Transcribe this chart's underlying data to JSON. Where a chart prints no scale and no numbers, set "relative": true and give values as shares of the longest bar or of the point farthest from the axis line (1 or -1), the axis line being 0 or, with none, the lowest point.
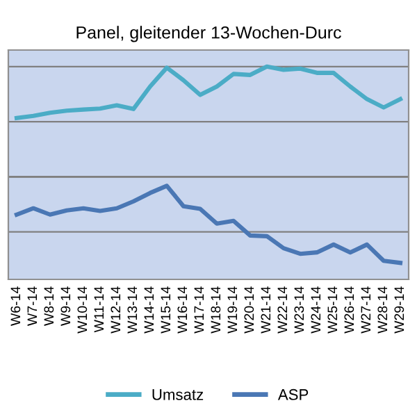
{
  "chart_data": {
    "type": "line",
    "title": "Panel, gleitender 13-Wochen-Durc",
    "relative": true,
    "grid": "y",
    "legend": "bottom",
    "line_style": "solid",
    "categories": [
      "W6-14",
      "W7-14",
      "W8-14",
      "W9-14",
      "W10-14",
      "W11-14",
      "W12-14",
      "W13-14",
      "W14-14",
      "W15-14",
      "W16-14",
      "W17-14",
      "W18-14",
      "W19-14",
      "W20-14",
      "W21-14",
      "W22-14",
      "W23-14",
      "W24-14",
      "W25-14",
      "W26-14",
      "W27-14",
      "W28-14",
      "W29-14"
    ],
    "series": [
      {
        "name": "Umsatz",
        "color": "#4bacc6",
        "values": [
          0.533,
          0.552,
          0.581,
          0.6,
          0.61,
          0.619,
          0.648,
          0.615,
          0.819,
          0.99,
          0.876,
          0.743,
          0.819,
          0.933,
          0.924,
          1.0,
          0.971,
          0.981,
          0.943,
          0.943,
          0.819,
          0.705,
          0.629,
          0.705
        ]
      },
      {
        "name": "ASP",
        "color": "#4a77b4",
        "values": [
          -0.343,
          -0.286,
          -0.343,
          -0.305,
          -0.286,
          -0.31,
          -0.286,
          -0.223,
          -0.147,
          -0.082,
          -0.267,
          -0.291,
          -0.425,
          -0.4,
          -0.533,
          -0.539,
          -0.648,
          -0.699,
          -0.686,
          -0.615,
          -0.686,
          -0.615,
          -0.762,
          -0.781
        ]
      }
    ]
  }
}
